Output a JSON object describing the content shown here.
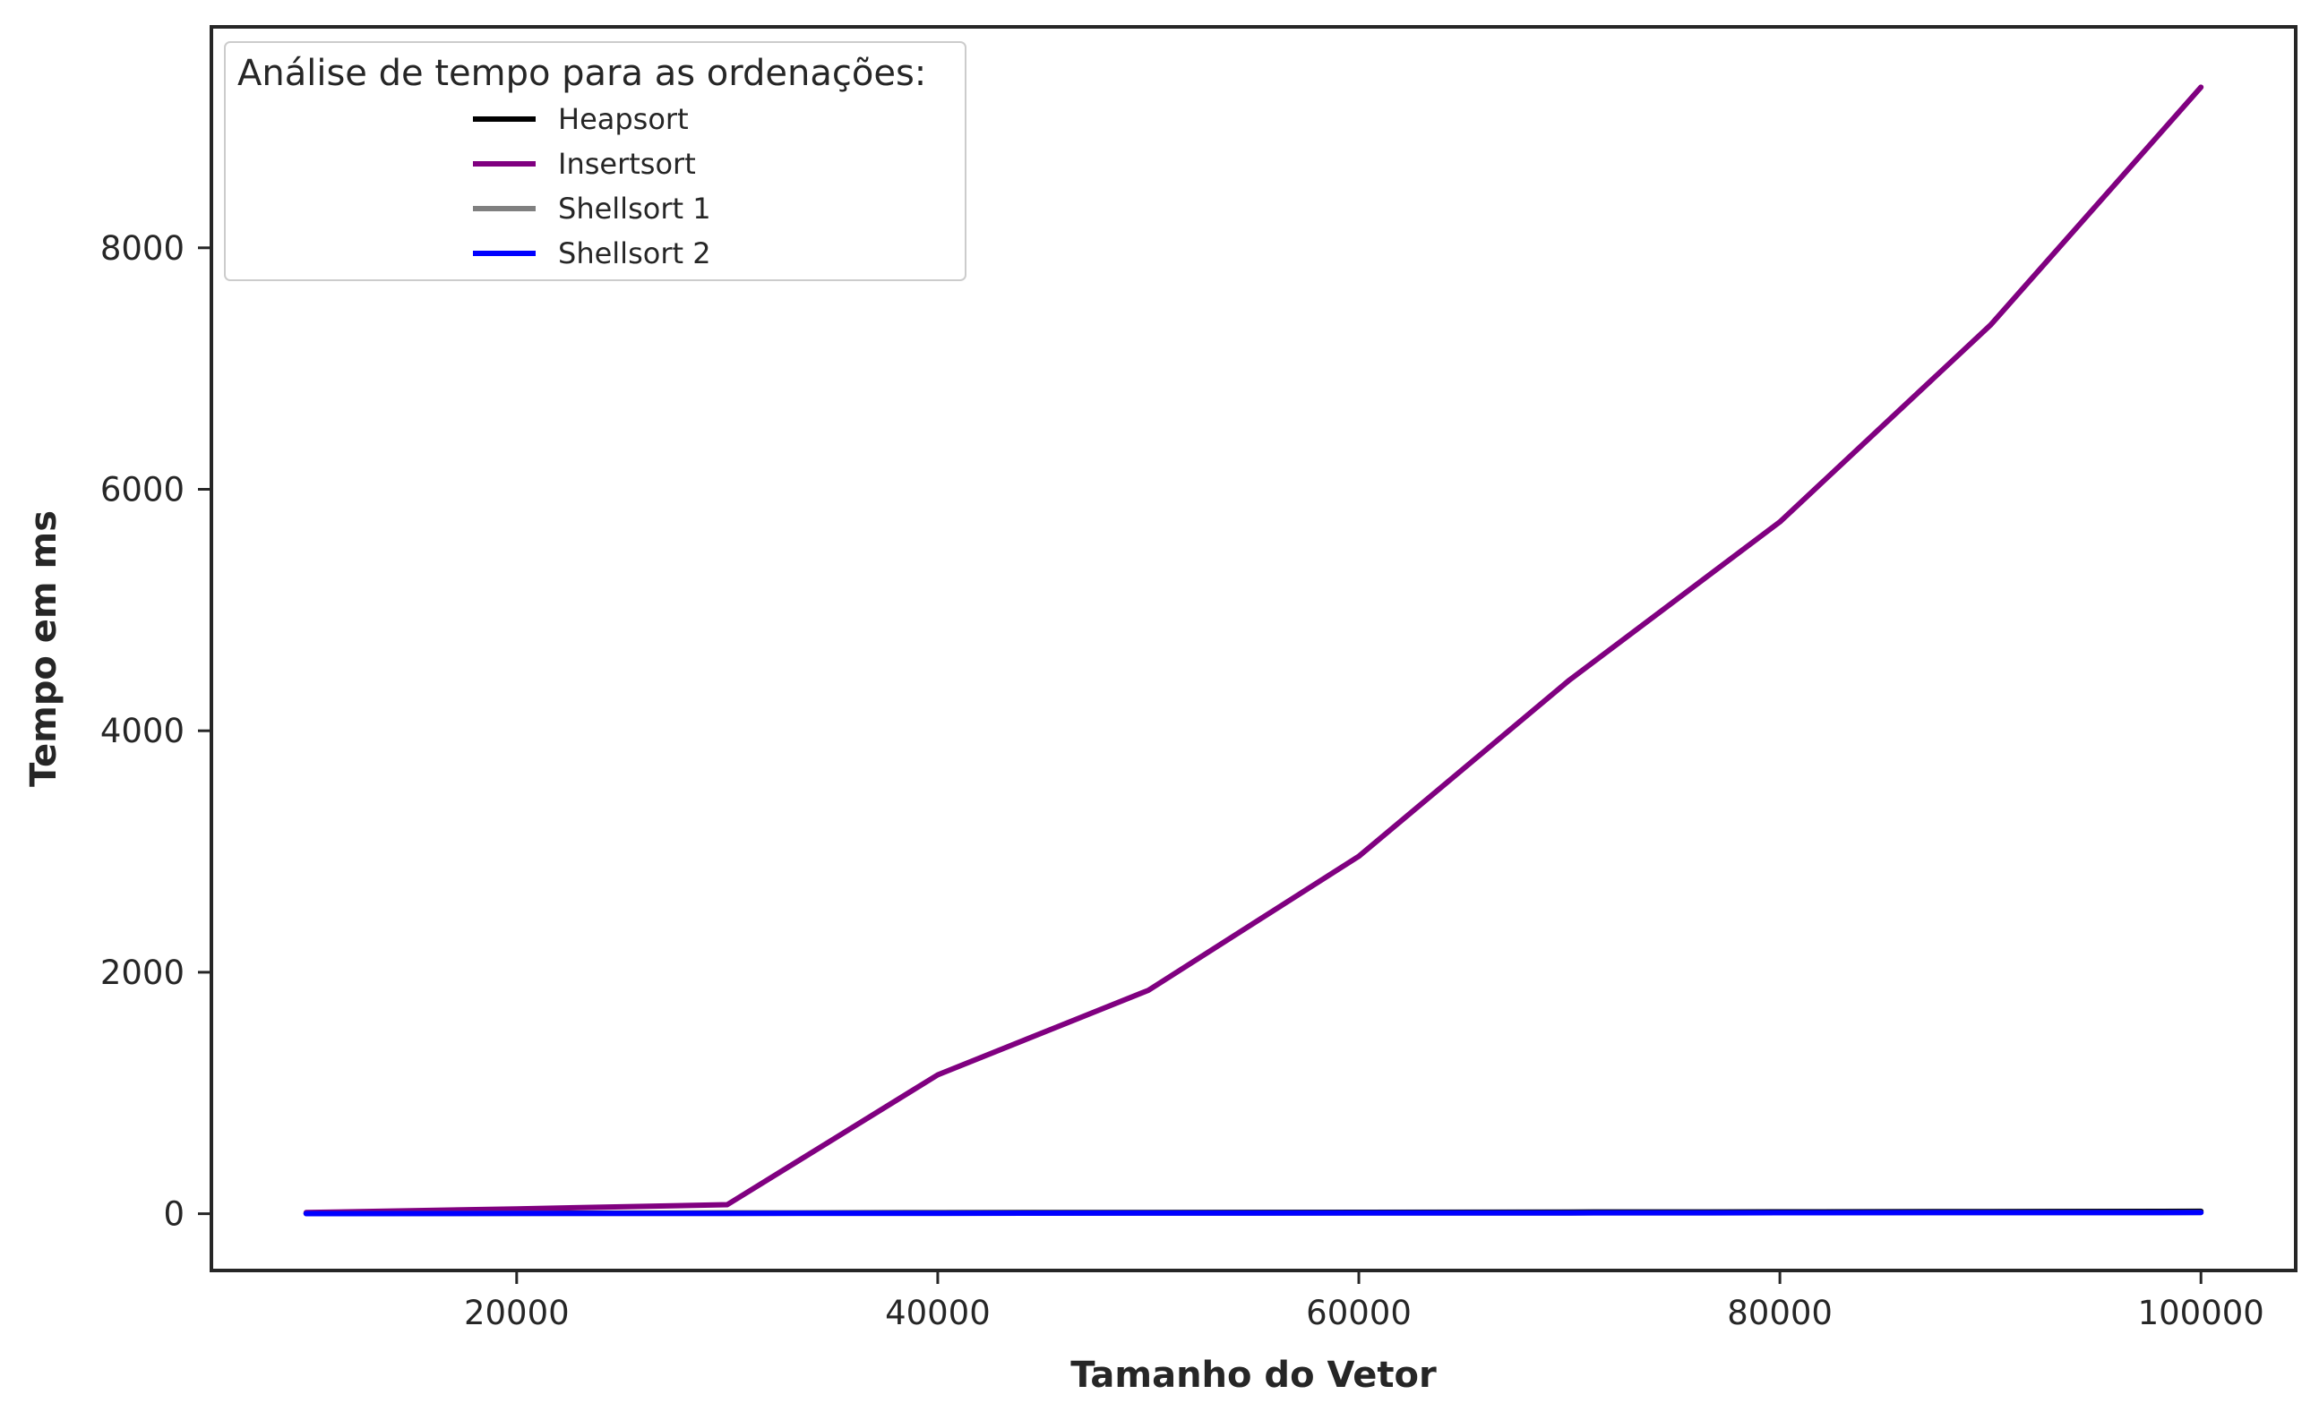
{
  "chart_data": {
    "type": "line",
    "title": "",
    "xlabel": "Tamanho do Vetor",
    "ylabel": "Tempo em ms",
    "xlim": [
      5500,
      104500
    ],
    "ylim": [
      -470,
      9830
    ],
    "xticks": [
      20000,
      40000,
      60000,
      80000,
      100000
    ],
    "yticks": [
      0,
      2000,
      4000,
      6000,
      8000
    ],
    "grid": false,
    "legend": {
      "title": "Análise de tempo para as ordenações:",
      "position": "top-left"
    },
    "x": [
      10000,
      20000,
      30000,
      40000,
      50000,
      60000,
      70000,
      80000,
      90000,
      100000
    ],
    "series": [
      {
        "name": "Heapsort",
        "color": "#000000",
        "values": [
          2,
          4,
          6,
          8,
          10,
          12,
          14,
          16,
          18,
          20
        ]
      },
      {
        "name": "Insertsort",
        "color": "#800080",
        "values": [
          10,
          40,
          75,
          1150,
          1850,
          2960,
          4420,
          5730,
          7360,
          9330
        ]
      },
      {
        "name": "Shellsort 1",
        "color": "#808080",
        "values": [
          1,
          2,
          3,
          4,
          5,
          6,
          7,
          8,
          9,
          10
        ]
      },
      {
        "name": "Shellsort 2",
        "color": "#0000ff",
        "values": [
          1,
          2,
          3,
          4,
          5,
          6,
          7,
          8,
          9,
          10
        ]
      }
    ]
  }
}
